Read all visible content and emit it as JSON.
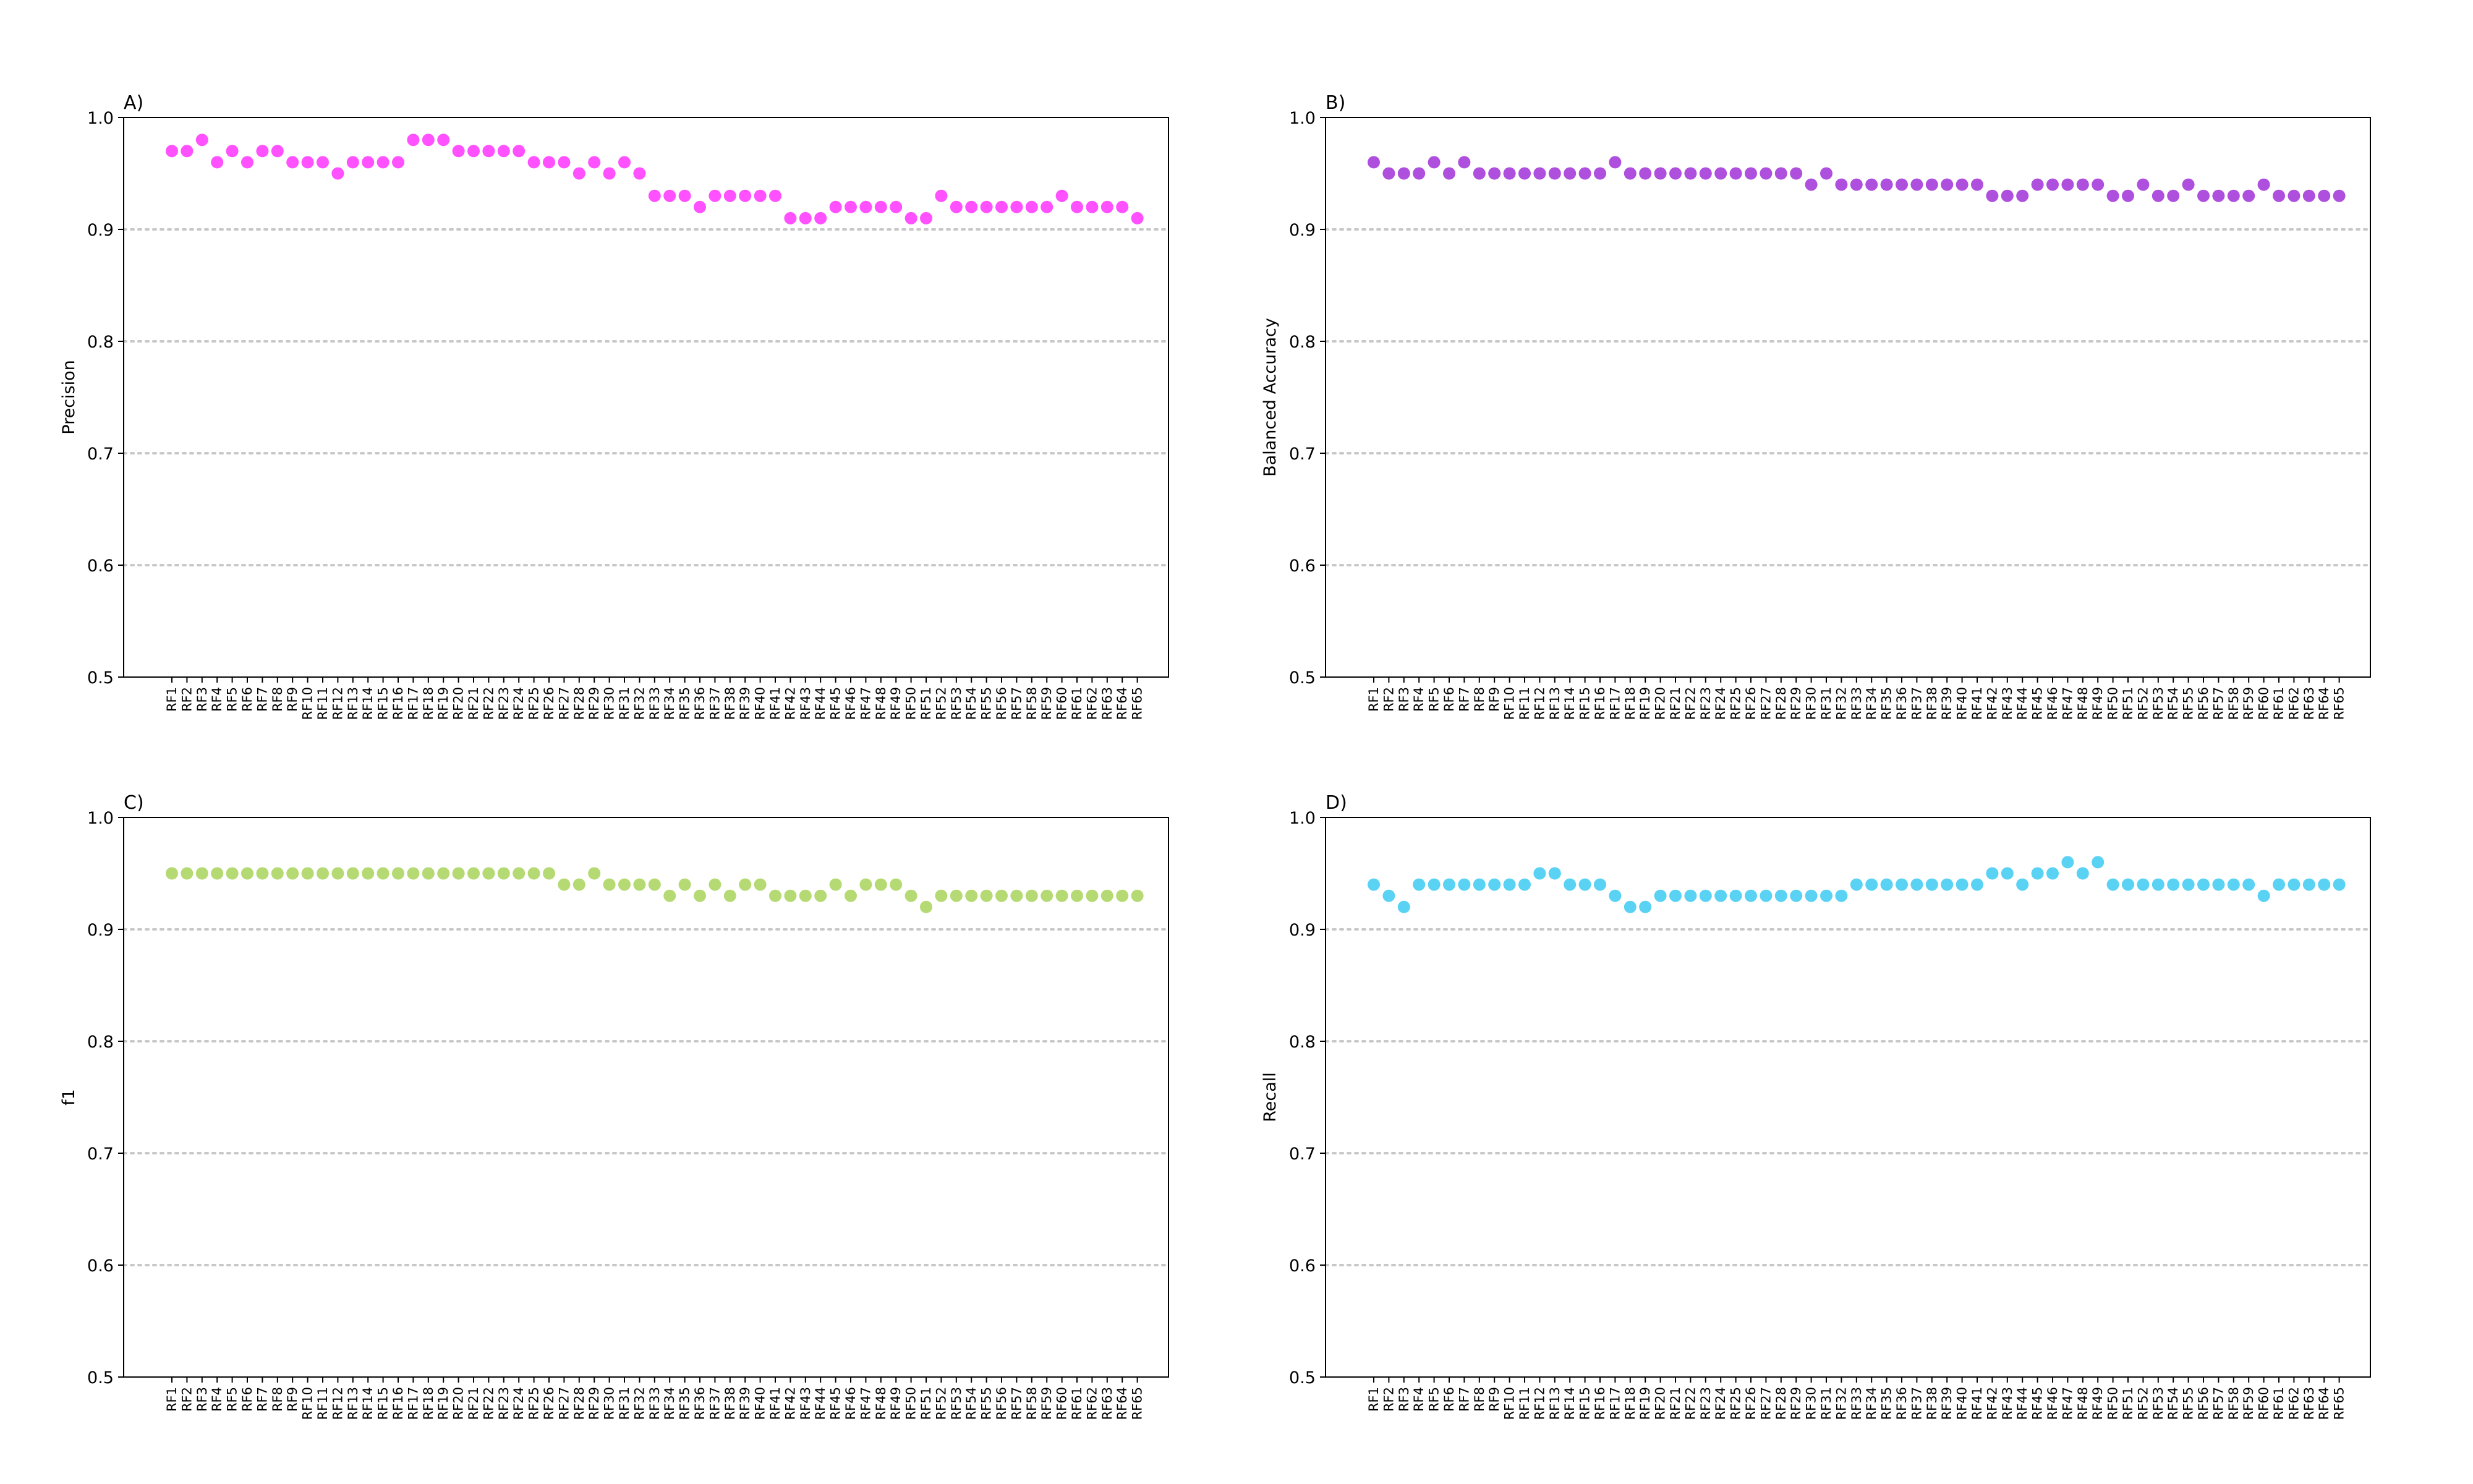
{
  "colors": {
    "A": "#ff33ff",
    "B": "#a030d8",
    "C": "#a8d45a",
    "D": "#3ccaf2",
    "grid": "#c8c8c8"
  },
  "chart_data": [
    {
      "panel_label": "A)",
      "type": "scatter",
      "ylabel": "Precision",
      "xlabel": "",
      "ylim": [
        0.5,
        1.0
      ],
      "yticks": [
        "0.5",
        "0.6",
        "0.7",
        "0.8",
        "0.9",
        "1.0"
      ],
      "grid": "horizontal dotted",
      "color": "#ff33ff",
      "categories": [
        "RF1",
        "RF2",
        "RF3",
        "RF4",
        "RF5",
        "RF6",
        "RF7",
        "RF8",
        "RF9",
        "RF10",
        "RF11",
        "RF12",
        "RF13",
        "RF14",
        "RF15",
        "RF16",
        "RF17",
        "RF18",
        "RF19",
        "RF20",
        "RF21",
        "RF22",
        "RF23",
        "RF24",
        "RF25",
        "RF26",
        "RF27",
        "RF28",
        "RF29",
        "RF30",
        "RF31",
        "RF32",
        "RF33",
        "RF34",
        "RF35",
        "RF36",
        "RF37",
        "RF38",
        "RF39",
        "RF40",
        "RF41",
        "RF42",
        "RF43",
        "RF44",
        "RF45",
        "RF46",
        "RF47",
        "RF48",
        "RF49",
        "RF50",
        "RF51",
        "RF52",
        "RF53",
        "RF54",
        "RF55",
        "RF56",
        "RF57",
        "RF58",
        "RF59",
        "RF60",
        "RF61",
        "RF62",
        "RF63",
        "RF64",
        "RF65"
      ],
      "values": [
        0.97,
        0.97,
        0.98,
        0.96,
        0.97,
        0.96,
        0.97,
        0.97,
        0.96,
        0.96,
        0.96,
        0.95,
        0.96,
        0.96,
        0.96,
        0.96,
        0.98,
        0.98,
        0.98,
        0.97,
        0.97,
        0.97,
        0.97,
        0.97,
        0.96,
        0.96,
        0.96,
        0.95,
        0.96,
        0.95,
        0.96,
        0.95,
        0.93,
        0.93,
        0.93,
        0.92,
        0.93,
        0.93,
        0.93,
        0.93,
        0.93,
        0.91,
        0.91,
        0.91,
        0.92,
        0.92,
        0.92,
        0.92,
        0.92,
        0.91,
        0.91,
        0.93,
        0.92,
        0.92,
        0.92,
        0.92,
        0.92,
        0.92,
        0.92,
        0.93,
        0.92,
        0.92,
        0.92,
        0.92,
        0.91
      ]
    },
    {
      "panel_label": "B)",
      "type": "scatter",
      "ylabel": "Balanced Accuracy",
      "xlabel": "",
      "ylim": [
        0.5,
        1.0
      ],
      "yticks": [
        "0.5",
        "0.6",
        "0.7",
        "0.8",
        "0.9",
        "1.0"
      ],
      "grid": "horizontal dotted",
      "color": "#a030d8",
      "categories": [
        "RF1",
        "RF2",
        "RF3",
        "RF4",
        "RF5",
        "RF6",
        "RF7",
        "RF8",
        "RF9",
        "RF10",
        "RF11",
        "RF12",
        "RF13",
        "RF14",
        "RF15",
        "RF16",
        "RF17",
        "RF18",
        "RF19",
        "RF20",
        "RF21",
        "RF22",
        "RF23",
        "RF24",
        "RF25",
        "RF26",
        "RF27",
        "RF28",
        "RF29",
        "RF30",
        "RF31",
        "RF32",
        "RF33",
        "RF34",
        "RF35",
        "RF36",
        "RF37",
        "RF38",
        "RF39",
        "RF40",
        "RF41",
        "RF42",
        "RF43",
        "RF44",
        "RF45",
        "RF46",
        "RF47",
        "RF48",
        "RF49",
        "RF50",
        "RF51",
        "RF52",
        "RF53",
        "RF54",
        "RF55",
        "RF56",
        "RF57",
        "RF58",
        "RF59",
        "RF60",
        "RF61",
        "RF62",
        "RF63",
        "RF64",
        "RF65"
      ],
      "values": [
        0.96,
        0.95,
        0.95,
        0.95,
        0.96,
        0.95,
        0.96,
        0.95,
        0.95,
        0.95,
        0.95,
        0.95,
        0.95,
        0.95,
        0.95,
        0.95,
        0.96,
        0.95,
        0.95,
        0.95,
        0.95,
        0.95,
        0.95,
        0.95,
        0.95,
        0.95,
        0.95,
        0.95,
        0.95,
        0.94,
        0.95,
        0.94,
        0.94,
        0.94,
        0.94,
        0.94,
        0.94,
        0.94,
        0.94,
        0.94,
        0.94,
        0.93,
        0.93,
        0.93,
        0.94,
        0.94,
        0.94,
        0.94,
        0.94,
        0.93,
        0.93,
        0.94,
        0.93,
        0.93,
        0.94,
        0.93,
        0.93,
        0.93,
        0.93,
        0.94,
        0.93,
        0.93,
        0.93,
        0.93,
        0.93
      ]
    },
    {
      "panel_label": "C)",
      "type": "scatter",
      "ylabel": "f1",
      "xlabel": "",
      "ylim": [
        0.5,
        1.0
      ],
      "yticks": [
        "0.5",
        "0.6",
        "0.7",
        "0.8",
        "0.9",
        "1.0"
      ],
      "grid": "horizontal dotted",
      "color": "#a8d45a",
      "categories": [
        "RF1",
        "RF2",
        "RF3",
        "RF4",
        "RF5",
        "RF6",
        "RF7",
        "RF8",
        "RF9",
        "RF10",
        "RF11",
        "RF12",
        "RF13",
        "RF14",
        "RF15",
        "RF16",
        "RF17",
        "RF18",
        "RF19",
        "RF20",
        "RF21",
        "RF22",
        "RF23",
        "RF24",
        "RF25",
        "RF26",
        "RF27",
        "RF28",
        "RF29",
        "RF30",
        "RF31",
        "RF32",
        "RF33",
        "RF34",
        "RF35",
        "RF36",
        "RF37",
        "RF38",
        "RF39",
        "RF40",
        "RF41",
        "RF42",
        "RF43",
        "RF44",
        "RF45",
        "RF46",
        "RF47",
        "RF48",
        "RF49",
        "RF50",
        "RF51",
        "RF52",
        "RF53",
        "RF54",
        "RF55",
        "RF56",
        "RF57",
        "RF58",
        "RF59",
        "RF60",
        "RF61",
        "RF62",
        "RF63",
        "RF64",
        "RF65"
      ],
      "values": [
        0.95,
        0.95,
        0.95,
        0.95,
        0.95,
        0.95,
        0.95,
        0.95,
        0.95,
        0.95,
        0.95,
        0.95,
        0.95,
        0.95,
        0.95,
        0.95,
        0.95,
        0.95,
        0.95,
        0.95,
        0.95,
        0.95,
        0.95,
        0.95,
        0.95,
        0.95,
        0.94,
        0.94,
        0.95,
        0.94,
        0.94,
        0.94,
        0.94,
        0.93,
        0.94,
        0.93,
        0.94,
        0.93,
        0.94,
        0.94,
        0.93,
        0.93,
        0.93,
        0.93,
        0.94,
        0.93,
        0.94,
        0.94,
        0.94,
        0.93,
        0.92,
        0.93,
        0.93,
        0.93,
        0.93,
        0.93,
        0.93,
        0.93,
        0.93,
        0.93,
        0.93,
        0.93,
        0.93,
        0.93,
        0.93
      ]
    },
    {
      "panel_label": "D)",
      "type": "scatter",
      "ylabel": "Recall",
      "xlabel": "",
      "ylim": [
        0.5,
        1.0
      ],
      "yticks": [
        "0.5",
        "0.6",
        "0.7",
        "0.8",
        "0.9",
        "1.0"
      ],
      "grid": "horizontal dotted",
      "color": "#3ccaf2",
      "categories": [
        "RF1",
        "RF2",
        "RF3",
        "RF4",
        "RF5",
        "RF6",
        "RF7",
        "RF8",
        "RF9",
        "RF10",
        "RF11",
        "RF12",
        "RF13",
        "RF14",
        "RF15",
        "RF16",
        "RF17",
        "RF18",
        "RF19",
        "RF20",
        "RF21",
        "RF22",
        "RF23",
        "RF24",
        "RF25",
        "RF26",
        "RF27",
        "RF28",
        "RF29",
        "RF30",
        "RF31",
        "RF32",
        "RF33",
        "RF34",
        "RF35",
        "RF36",
        "RF37",
        "RF38",
        "RF39",
        "RF40",
        "RF41",
        "RF42",
        "RF43",
        "RF44",
        "RF45",
        "RF46",
        "RF47",
        "RF48",
        "RF49",
        "RF50",
        "RF51",
        "RF52",
        "RF53",
        "RF54",
        "RF55",
        "RF56",
        "RF57",
        "RF58",
        "RF59",
        "RF60",
        "RF61",
        "RF62",
        "RF63",
        "RF64",
        "RF65"
      ],
      "values": [
        0.94,
        0.93,
        0.92,
        0.94,
        0.94,
        0.94,
        0.94,
        0.94,
        0.94,
        0.94,
        0.94,
        0.95,
        0.95,
        0.94,
        0.94,
        0.94,
        0.93,
        0.92,
        0.92,
        0.93,
        0.93,
        0.93,
        0.93,
        0.93,
        0.93,
        0.93,
        0.93,
        0.93,
        0.93,
        0.93,
        0.93,
        0.93,
        0.94,
        0.94,
        0.94,
        0.94,
        0.94,
        0.94,
        0.94,
        0.94,
        0.94,
        0.95,
        0.95,
        0.94,
        0.95,
        0.95,
        0.96,
        0.95,
        0.96,
        0.94,
        0.94,
        0.94,
        0.94,
        0.94,
        0.94,
        0.94,
        0.94,
        0.94,
        0.94,
        0.93,
        0.94,
        0.94,
        0.94,
        0.94,
        0.94
      ]
    }
  ]
}
